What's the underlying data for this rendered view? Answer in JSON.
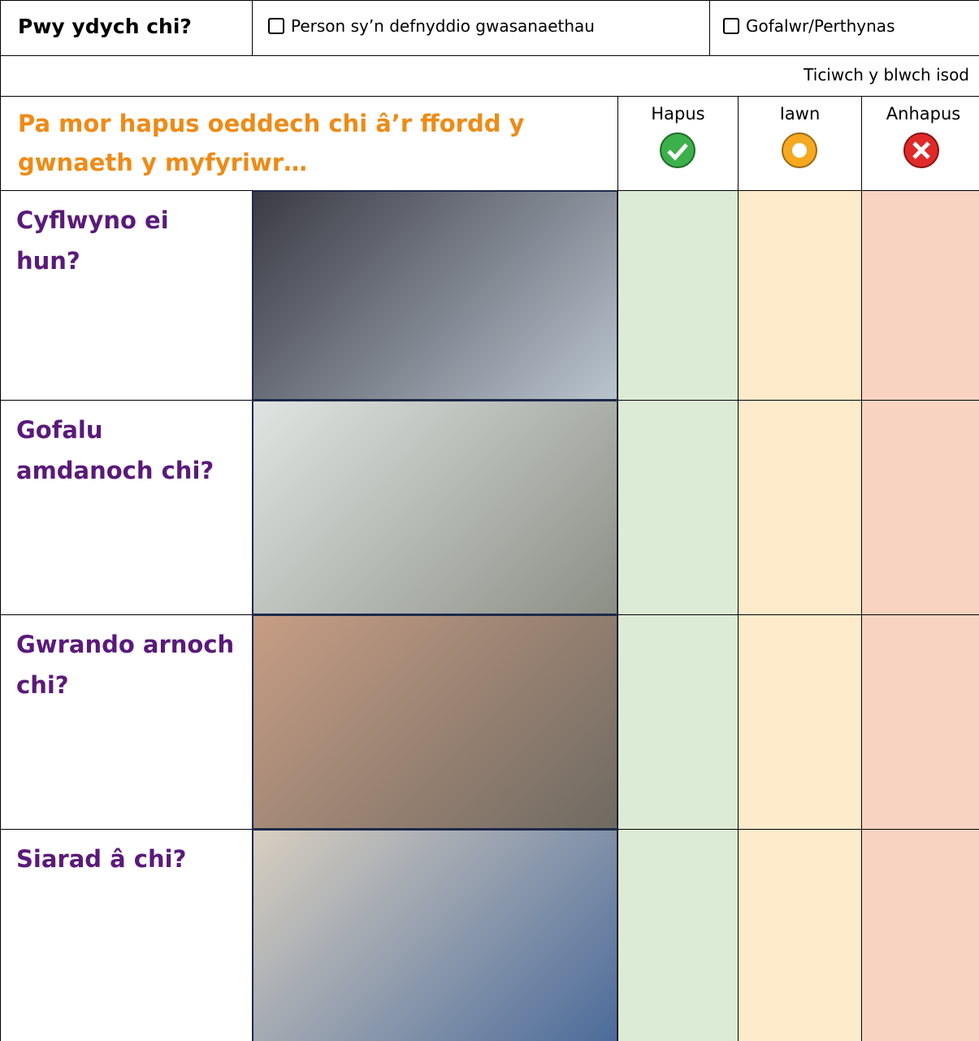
{
  "header": {
    "question": "Pwy ydych chi?",
    "options": [
      "Person sy’n defnyddio gwasanaethau",
      "Gofalwr/Perthynas"
    ]
  },
  "instruction": "Ticiwch y blwch isod",
  "table": {
    "question": "Pa mor hapus oeddech chi â’r ffordd y gwnaeth y myfyriwr…",
    "columns": [
      "Hapus",
      "Iawn",
      "Anhapus"
    ],
    "rows": [
      "Cyflwyno ei hun?",
      "Gofalu amdanoch chi?",
      "Gwrando arnoch chi?",
      "Siarad â chi?"
    ]
  }
}
